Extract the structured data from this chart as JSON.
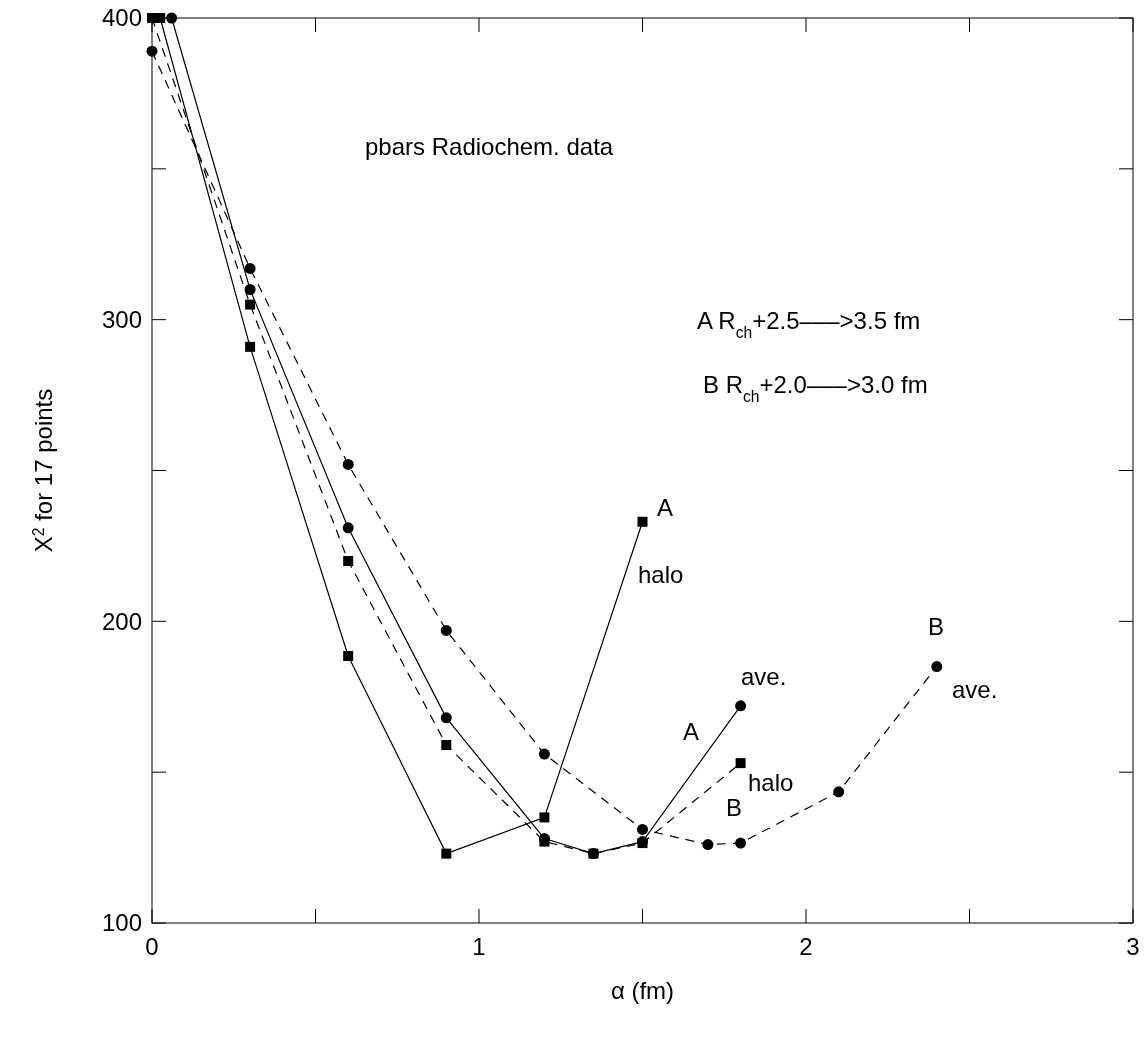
{
  "chart_data": {
    "type": "line",
    "xlabel": "α (fm)",
    "ylabel": "X$^{2}$ for 17 points",
    "xlim": [
      0,
      3
    ],
    "ylim": [
      100,
      400
    ],
    "xticks": [
      0,
      {
        "value": 0.5,
        "label": null
      },
      1,
      {
        "value": 1.5,
        "label": null
      },
      2,
      {
        "value": 2.5,
        "label": null
      },
      3
    ],
    "yticks": [
      100,
      {
        "value": 150,
        "label": null
      },
      200,
      {
        "value": 250,
        "label": null
      },
      300,
      {
        "value": 350,
        "label": null
      },
      400
    ],
    "grid": false,
    "series": [
      {
        "color": "#000000",
        "marker": "square",
        "line_style": "solid",
        "x": [
          0.025,
          0.3,
          0.6,
          0.9,
          1.2,
          1.5
        ],
        "values": [
          400,
          291,
          188.5,
          123,
          135,
          233
        ]
      },
      {
        "color": "#000000",
        "marker": "circle",
        "line_style": "solid",
        "x": [
          0.06,
          0.3,
          0.6,
          0.9,
          1.2,
          1.35,
          1.5,
          1.8
        ],
        "values": [
          400,
          310,
          231,
          168,
          128,
          123,
          127,
          172
        ]
      },
      {
        "color": "#000000",
        "marker": "square",
        "line_style": "dashed",
        "x": [
          0,
          0.3,
          0.6,
          0.9,
          1.2,
          1.35,
          1.5,
          1.8
        ],
        "values": [
          400,
          305,
          220,
          159,
          127,
          123,
          126.5,
          153
        ]
      },
      {
        "color": "#000000",
        "marker": "circle",
        "line_style": "dashed",
        "x": [
          0,
          0.3,
          0.6,
          0.9,
          1.2,
          1.5,
          1.7,
          1.8,
          2.1,
          2.4
        ],
        "values": [
          389,
          317,
          252,
          197,
          156,
          131,
          126,
          126.5,
          143.5,
          185
        ]
      }
    ],
    "annotations": [
      "pbars Radiochem. data",
      "A R$_{ch}$+2.5–––>3.5 fm",
      "B R$_{ch}$+2.0–––>3.0 fm",
      "A",
      "halo",
      "A",
      "ave.",
      "halo",
      "B",
      "B",
      "ave."
    ]
  }
}
